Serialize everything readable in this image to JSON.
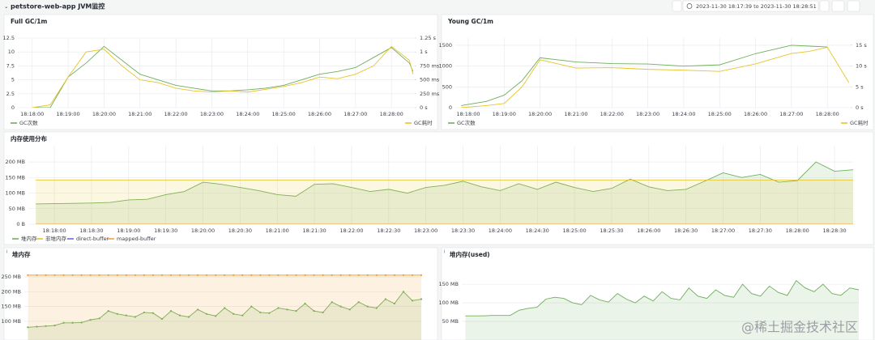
{
  "header": {
    "title": "petstore-web-app JVM监控",
    "time_range": "2023-11-30 18:17:39 to 2023-11-30 18:28:51"
  },
  "watermark": "@稀土掘金技术社区",
  "chart_data": [
    {
      "type": "line",
      "title": "Full GC/1m",
      "legend": true,
      "area": false,
      "points": false,
      "x": [
        1098,
        1098.5,
        1099,
        1099.5,
        1100,
        1100.5,
        1101,
        1101.5,
        1102,
        1102.5,
        1103,
        1103.5,
        1104,
        1104.5,
        1105,
        1105.5,
        1106,
        1106.5,
        1107,
        1107.5,
        1108,
        1108.5,
        1108.6
      ],
      "xlim": [
        1097.6,
        1108.65
      ],
      "xticks": [
        {
          "value": 1098,
          "label": "18:18:00"
        },
        {
          "value": 1099,
          "label": "18:19:00"
        },
        {
          "value": 1100,
          "label": "18:20:00"
        },
        {
          "value": 1101,
          "label": "18:21:00"
        },
        {
          "value": 1102,
          "label": "18:22:00"
        },
        {
          "value": 1103,
          "label": "18:23:00"
        },
        {
          "value": 1104,
          "label": "18:24:00"
        },
        {
          "value": 1105,
          "label": "18:25:00"
        },
        {
          "value": 1106,
          "label": "18:26:00"
        },
        {
          "value": 1107,
          "label": "18:27:00"
        },
        {
          "value": 1108,
          "label": "18:28:00"
        }
      ],
      "ylim": [
        0,
        12.5
      ],
      "yticks": [
        0,
        2.5,
        5,
        7.5,
        10,
        12.5
      ],
      "y2lim": [
        0,
        1.25
      ],
      "y2ticks": [
        {
          "value": 0,
          "label": "0 s"
        },
        {
          "value": 0.25,
          "label": "250 ms"
        },
        {
          "value": 0.5,
          "label": "500 ms"
        },
        {
          "value": 0.75,
          "label": "750 ms"
        },
        {
          "value": 1,
          "label": "1 s"
        },
        {
          "value": 1.25,
          "label": "1.25 s"
        }
      ],
      "series": [
        {
          "name": "GC次数",
          "color": "#6fae5c",
          "values": [
            0,
            0,
            5.5,
            8,
            11,
            8.5,
            6,
            5,
            4,
            3.5,
            3,
            3,
            3.2,
            3.5,
            4,
            5,
            6,
            6.5,
            7.2,
            9,
            10.8,
            8,
            6.5
          ]
        },
        {
          "name": "GC耗时",
          "color": "#e8c32a",
          "axis": "y2",
          "values": [
            0,
            0.05,
            0.55,
            1,
            1.05,
            0.75,
            0.5,
            0.45,
            0.35,
            0.3,
            0.28,
            0.3,
            0.28,
            0.33,
            0.38,
            0.45,
            0.55,
            0.52,
            0.6,
            0.75,
            1.1,
            0.85,
            0.6
          ]
        }
      ]
    },
    {
      "type": "line",
      "title": "Young GC/1m",
      "legend": true,
      "area": false,
      "points": false,
      "x": [
        1097.8,
        1098.5,
        1099,
        1099.5,
        1100,
        1100.5,
        1101,
        1102,
        1103,
        1104,
        1105,
        1106,
        1107,
        1107.5,
        1108,
        1108.6
      ],
      "xlim": [
        1097.64,
        1108.65
      ],
      "xticks": [
        {
          "value": 1098,
          "label": "18:18:00"
        },
        {
          "value": 1099,
          "label": "18:19:00"
        },
        {
          "value": 1100,
          "label": "18:20:00"
        },
        {
          "value": 1101,
          "label": "18:21:00"
        },
        {
          "value": 1102,
          "label": "18:22:00"
        },
        {
          "value": 1103,
          "label": "18:23:00"
        },
        {
          "value": 1104,
          "label": "18:24:00"
        },
        {
          "value": 1105,
          "label": "18:25:00"
        },
        {
          "value": 1106,
          "label": "18:26:00"
        },
        {
          "value": 1107,
          "label": "18:27:00"
        },
        {
          "value": 1108,
          "label": "18:28:00"
        }
      ],
      "ylim": [
        0,
        1675
      ],
      "yticks": [
        0,
        500,
        1000,
        1500
      ],
      "y2lim": [
        0,
        16.7
      ],
      "y2ticks": [
        {
          "value": 0,
          "label": "0 s"
        },
        {
          "value": 5,
          "label": "5 s"
        },
        {
          "value": 10,
          "label": "10 s"
        },
        {
          "value": 15,
          "label": "15 s"
        }
      ],
      "series": [
        {
          "name": "GC次数",
          "color": "#6fae5c",
          "values": [
            50,
            150,
            300,
            650,
            1200,
            1150,
            1100,
            1060,
            1050,
            1000,
            1030,
            1300,
            1500,
            1480,
            1460,
            null
          ]
        },
        {
          "name": "GC耗时",
          "color": "#e8c32a",
          "axis": "y2",
          "values": [
            0,
            0.5,
            1,
            5,
            11.5,
            10.5,
            9.5,
            9.6,
            9.2,
            9,
            8.7,
            10.5,
            13,
            13.5,
            14.5,
            6
          ]
        }
      ]
    },
    {
      "type": "line",
      "title": "内存使用分布",
      "legend": true,
      "area": true,
      "points": false,
      "x": [
        1097.75,
        1098,
        1098.25,
        1098.5,
        1098.75,
        1099,
        1099.25,
        1099.5,
        1099.75,
        1100,
        1100.25,
        1100.5,
        1100.75,
        1101,
        1101.25,
        1101.5,
        1101.75,
        1102,
        1102.25,
        1102.5,
        1102.75,
        1103,
        1103.25,
        1103.5,
        1103.75,
        1104,
        1104.25,
        1104.5,
        1104.75,
        1105,
        1105.25,
        1105.5,
        1105.75,
        1106,
        1106.25,
        1106.5,
        1106.75,
        1107,
        1107.25,
        1107.5,
        1107.75,
        1108,
        1108.25,
        1108.5,
        1108.75
      ],
      "xlim": [
        1097.65,
        1108.75
      ],
      "xticks": [
        {
          "value": 1098,
          "label": "18:18:00"
        },
        {
          "value": 1098.5,
          "label": "18:18:30"
        },
        {
          "value": 1099,
          "label": "18:19:00"
        },
        {
          "value": 1099.5,
          "label": "18:19:30"
        },
        {
          "value": 1100,
          "label": "18:20:00"
        },
        {
          "value": 1100.5,
          "label": "18:20:30"
        },
        {
          "value": 1101,
          "label": "18:21:00"
        },
        {
          "value": 1101.5,
          "label": "18:21:30"
        },
        {
          "value": 1102,
          "label": "18:22:00"
        },
        {
          "value": 1102.5,
          "label": "18:22:30"
        },
        {
          "value": 1103,
          "label": "18:23:00"
        },
        {
          "value": 1103.5,
          "label": "18:23:30"
        },
        {
          "value": 1104,
          "label": "18:24:00"
        },
        {
          "value": 1104.5,
          "label": "18:24:30"
        },
        {
          "value": 1105,
          "label": "18:25:00"
        },
        {
          "value": 1105.5,
          "label": "18:25:30"
        },
        {
          "value": 1106,
          "label": "18:26:00"
        },
        {
          "value": 1106.5,
          "label": "18:26:30"
        },
        {
          "value": 1107,
          "label": "18:27:00"
        },
        {
          "value": 1107.5,
          "label": "18:27:30"
        },
        {
          "value": 1108,
          "label": "18:28:00"
        },
        {
          "value": 1108.5,
          "label": "18:28:30"
        }
      ],
      "ylim": [
        0,
        252
      ],
      "yticks": [
        {
          "value": 0,
          "label": "0 B"
        },
        {
          "value": 50,
          "label": "50 MB"
        },
        {
          "value": 100,
          "label": "100 MB"
        },
        {
          "value": 150,
          "label": "150 MB"
        },
        {
          "value": 200,
          "label": "200 MB"
        }
      ],
      "series": [
        {
          "name": "堆内存",
          "color": "#6fae5c",
          "values": [
            65,
            66,
            67,
            68,
            70,
            78,
            80,
            95,
            105,
            135,
            128,
            118,
            108,
            95,
            90,
            128,
            130,
            118,
            105,
            112,
            100,
            118,
            125,
            138,
            120,
            108,
            130,
            112,
            135,
            118,
            105,
            115,
            145,
            120,
            108,
            112,
            138,
            165,
            150,
            160,
            135,
            140,
            200,
            170,
            175
          ]
        },
        {
          "name": "非堆内存",
          "color": "#e8c32a",
          "values": [
            142,
            142,
            142,
            142,
            142,
            142,
            142,
            142,
            142,
            142,
            142,
            142,
            142,
            142,
            142,
            142,
            142,
            142,
            142,
            142,
            142,
            142,
            142,
            142,
            142,
            142,
            142,
            142,
            142,
            142,
            142,
            142,
            142,
            142,
            142,
            142,
            142,
            142,
            142,
            142,
            142,
            142,
            142,
            142,
            142
          ]
        },
        {
          "name": "direct-buffer",
          "color": "#6e6ad8",
          "values": [
            0,
            0,
            0,
            0,
            0,
            0,
            0,
            0,
            0,
            0,
            0,
            0,
            0,
            0,
            0,
            0,
            0,
            0,
            0,
            0,
            0,
            0,
            0,
            0,
            0,
            0,
            0,
            0,
            0,
            0,
            0,
            0,
            0,
            0,
            0,
            0,
            0,
            0,
            0,
            0,
            0,
            0,
            0,
            0,
            0
          ]
        },
        {
          "name": "mapped-buffer",
          "color": "#f2a33a",
          "values": [
            0,
            0,
            0,
            0,
            0,
            0,
            0,
            0,
            0,
            0,
            0,
            0,
            0,
            0,
            0,
            0,
            0,
            0,
            0,
            0,
            0,
            0,
            0,
            0,
            0,
            0,
            0,
            0,
            0,
            0,
            0,
            0,
            0,
            0,
            0,
            0,
            0,
            0,
            0,
            0,
            0,
            0,
            0,
            0,
            0
          ]
        }
      ]
    },
    {
      "type": "line",
      "title": "堆内存",
      "legend": false,
      "area": true,
      "points": true,
      "x": [
        1097.75,
        1098,
        1098.25,
        1098.5,
        1098.75,
        1099,
        1099.25,
        1099.5,
        1099.75,
        1100,
        1100.25,
        1100.5,
        1100.75,
        1101,
        1101.25,
        1101.5,
        1101.75,
        1102,
        1102.25,
        1102.5,
        1102.75,
        1103,
        1103.25,
        1103.5,
        1103.75,
        1104,
        1104.25,
        1104.5,
        1104.75,
        1105,
        1105.25,
        1105.5,
        1105.75,
        1106,
        1106.25,
        1106.5,
        1106.75,
        1107,
        1107.25,
        1107.5,
        1107.75,
        1108,
        1108.25,
        1108.5,
        1108.75
      ],
      "xlim": [
        1097.65,
        1108.75
      ],
      "ylim": [
        37,
        283
      ],
      "yticks": [
        {
          "value": 100,
          "label": "100 MB"
        },
        {
          "value": 150,
          "label": "150 MB"
        },
        {
          "value": 200,
          "label": "200 MB"
        },
        {
          "value": 250,
          "label": "250 MB"
        }
      ],
      "series": [
        {
          "name": "堆内存",
          "color": "#6fae5c",
          "values": [
            80,
            82,
            84,
            86,
            95,
            95,
            96,
            105,
            110,
            135,
            125,
            120,
            115,
            130,
            128,
            108,
            135,
            120,
            115,
            140,
            125,
            118,
            145,
            125,
            120,
            150,
            130,
            128,
            145,
            140,
            135,
            160,
            135,
            130,
            165,
            150,
            140,
            165,
            150,
            145,
            175,
            160,
            200,
            170,
            175
          ]
        },
        {
          "name": "非堆内存",
          "color": "#f0a030",
          "values": [
            256,
            256,
            256,
            256,
            256,
            256,
            256,
            256,
            256,
            256,
            256,
            256,
            256,
            256,
            256,
            256,
            256,
            256,
            256,
            256,
            256,
            256,
            256,
            256,
            256,
            256,
            256,
            256,
            256,
            256,
            256,
            256,
            256,
            256,
            256,
            256,
            256,
            256,
            256,
            256,
            256,
            256,
            256,
            256,
            256
          ]
        }
      ]
    },
    {
      "type": "line",
      "title": "堆内存(used)",
      "legend": false,
      "area": true,
      "points": false,
      "x": [
        1097.75,
        1098,
        1098.25,
        1098.5,
        1098.75,
        1099,
        1099.25,
        1099.5,
        1099.75,
        1100,
        1100.25,
        1100.5,
        1100.75,
        1101,
        1101.25,
        1101.5,
        1101.75,
        1102,
        1102.25,
        1102.5,
        1102.75,
        1103,
        1103.25,
        1103.5,
        1103.75,
        1104,
        1104.25,
        1104.5,
        1104.75,
        1105,
        1105.25,
        1105.5,
        1105.75,
        1106,
        1106.25,
        1106.5,
        1106.75,
        1107,
        1107.25,
        1107.5,
        1107.75,
        1108,
        1108.25,
        1108.5,
        1108.75
      ],
      "xlim": [
        1097.65,
        1108.75
      ],
      "ylim": [
        0,
        196
      ],
      "yticks": [
        {
          "value": 50,
          "label": "50 MB"
        },
        {
          "value": 100,
          "label": "100 MB"
        },
        {
          "value": 150,
          "label": "150 MB"
        }
      ],
      "series": [
        {
          "name": "堆内存",
          "color": "#6fae5c",
          "values": [
            65,
            65,
            65,
            66,
            66,
            66,
            80,
            85,
            88,
            110,
            115,
            112,
            100,
            95,
            120,
            108,
            102,
            125,
            110,
            100,
            118,
            105,
            130,
            112,
            108,
            140,
            118,
            112,
            135,
            120,
            115,
            150,
            125,
            118,
            145,
            128,
            120,
            160,
            140,
            130,
            150,
            125,
            120,
            140,
            135
          ]
        }
      ]
    }
  ]
}
